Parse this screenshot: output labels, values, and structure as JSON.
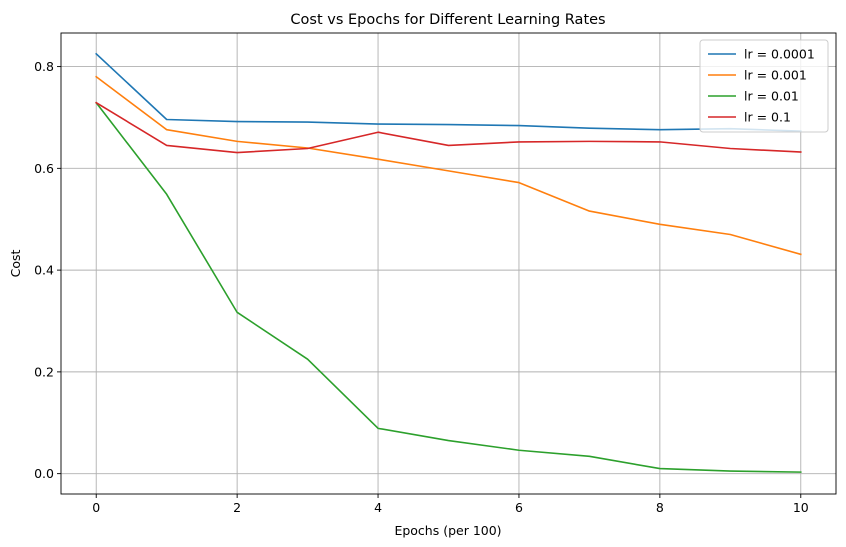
{
  "chart_data": {
    "type": "line",
    "title": "Cost vs Epochs for Different Learning Rates",
    "xlabel": "Epochs (per 100)",
    "ylabel": "Cost",
    "xlim": [
      -0.5,
      10.5
    ],
    "ylim": [
      -0.04,
      0.866
    ],
    "xticks": [
      0,
      2,
      4,
      6,
      8,
      10
    ],
    "yticks": [
      0.0,
      0.2,
      0.4,
      0.6,
      0.8
    ],
    "xtick_labels": [
      "0",
      "2",
      "4",
      "6",
      "8",
      "10"
    ],
    "ytick_labels": [
      "0.0",
      "0.2",
      "0.4",
      "0.6",
      "0.8"
    ],
    "grid": true,
    "legend_position": "top-right",
    "x": [
      0,
      1,
      2,
      3,
      4,
      5,
      6,
      7,
      8,
      9,
      10
    ],
    "series": [
      {
        "name": "lr = 0.0001",
        "color": "#1f77b4",
        "values": [
          0.825,
          0.696,
          0.692,
          0.691,
          0.687,
          0.686,
          0.684,
          0.679,
          0.676,
          0.678,
          0.673
        ]
      },
      {
        "name": "lr = 0.001",
        "color": "#ff7f0e",
        "values": [
          0.78,
          0.676,
          0.653,
          0.64,
          0.618,
          0.595,
          0.572,
          0.516,
          0.49,
          0.47,
          0.431
        ]
      },
      {
        "name": "lr = 0.01",
        "color": "#2ca02c",
        "values": [
          0.729,
          0.549,
          0.317,
          0.225,
          0.089,
          0.065,
          0.046,
          0.034,
          0.01,
          0.005,
          0.003
        ]
      },
      {
        "name": "lr = 0.1",
        "color": "#d62728",
        "values": [
          0.729,
          0.645,
          0.631,
          0.639,
          0.671,
          0.645,
          0.652,
          0.653,
          0.652,
          0.639,
          0.632
        ]
      }
    ]
  }
}
